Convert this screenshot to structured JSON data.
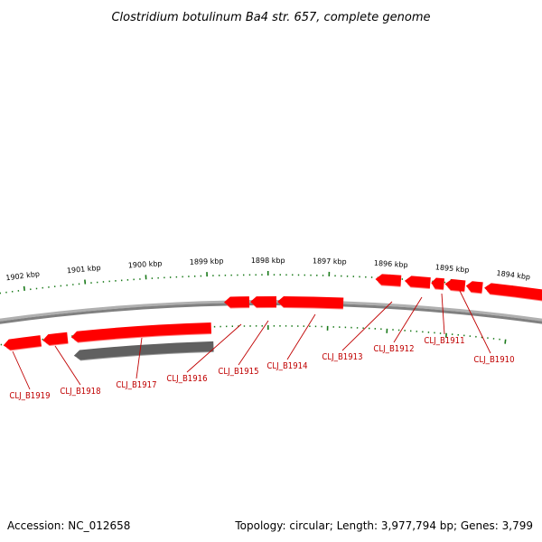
{
  "title": "Clostridium botulinum Ba4 str. 657, complete genome",
  "footer": {
    "accession": "Accession: NC_012658",
    "summary": "Topology: circular; Length: 3,977,794 bp; Genes: 3,799"
  },
  "colors": {
    "gene": "#ff0000",
    "gene_other": "#606060",
    "backbone": "#808080",
    "tick": "#1a7a1a",
    "label": "#c00000"
  },
  "scale_ticks": [
    {
      "label": "1902 kbp",
      "kbp": 1902
    },
    {
      "label": "1901 kbp",
      "kbp": 1901
    },
    {
      "label": "1900 kbp",
      "kbp": 1900
    },
    {
      "label": "1899 kbp",
      "kbp": 1899
    },
    {
      "label": "1898 kbp",
      "kbp": 1898
    },
    {
      "label": "1897 kbp",
      "kbp": 1897
    },
    {
      "label": "1896 kbp",
      "kbp": 1896
    },
    {
      "label": "1895 kbp",
      "kbp": 1895
    },
    {
      "label": "1894 kbp",
      "kbp": 1894
    }
  ],
  "genes": [
    {
      "label": "CLJ_B1919",
      "strand": "-"
    },
    {
      "label": "CLJ_B1918",
      "strand": "-"
    },
    {
      "label": "CLJ_B1917",
      "strand": "-"
    },
    {
      "label": "CLJ_B1916",
      "strand": "-"
    },
    {
      "label": "CLJ_B1915",
      "strand": "-"
    },
    {
      "label": "CLJ_B1914",
      "strand": "-"
    },
    {
      "label": "CLJ_B1913",
      "strand": "-"
    },
    {
      "label": "CLJ_B1912",
      "strand": "-"
    },
    {
      "label": "CLJ_B1911",
      "strand": "-"
    },
    {
      "label": "CLJ_B1910",
      "strand": "-"
    }
  ]
}
